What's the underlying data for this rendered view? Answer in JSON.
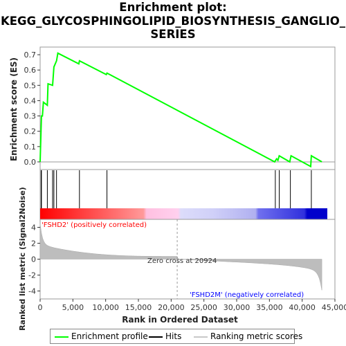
{
  "chart_data": {
    "type": "line",
    "title_lines": [
      "Enrichment plot:",
      "KEGG_GLYCOSPHINGOLIPID_BIOSYNTHESIS_GANGLIO_",
      "SERIES"
    ],
    "top_panel": {
      "ylabel": "Enrichment score (ES)",
      "ylim": [
        -0.05,
        0.75
      ],
      "yticks": [
        "0.0",
        "0.1",
        "0.2",
        "0.3",
        "0.4",
        "0.5",
        "0.6",
        "0.7"
      ],
      "series": {
        "name": "Enrichment profile",
        "color": "#00ff00",
        "x": [
          0,
          200,
          350,
          500,
          1100,
          1200,
          1900,
          2100,
          2500,
          2700,
          5900,
          6000,
          10100,
          10200,
          35800,
          36100,
          36300,
          36500,
          38100,
          38300,
          41300,
          41400,
          43000
        ],
        "y": [
          0.0,
          0.3,
          0.3,
          0.39,
          0.37,
          0.51,
          0.5,
          0.62,
          0.66,
          0.71,
          0.64,
          0.66,
          0.57,
          0.58,
          0.0,
          0.02,
          0.01,
          0.04,
          0.0,
          0.04,
          -0.03,
          0.04,
          0.0
        ]
      }
    },
    "hits": {
      "name": "Hits",
      "x": [
        150,
        200,
        1100,
        1900,
        2100,
        2500,
        6000,
        10200,
        35900,
        36500,
        38200,
        41400
      ]
    },
    "bottom_panel": {
      "ylabel": "Ranked list metric (Signal2Noise)",
      "xlabel": "Rank in Ordered Dataset",
      "ylim": [
        -5,
        5
      ],
      "yticks": [
        "-4",
        "-2",
        "0",
        "2",
        "4"
      ],
      "xlim": [
        0,
        45000
      ],
      "xticks": [
        "0",
        "5,000",
        "10,000",
        "15,000",
        "20,000",
        "25,000",
        "30,000",
        "35,000",
        "40,000",
        "45,000"
      ],
      "series_name": "Ranking metric scores",
      "zero_cross": 20924,
      "zero_cross_text": "Zero cross at 20924",
      "positive_label": "'FSHD2' (positively correlated)",
      "negative_label": "'FSHD2M' (negatively correlated)",
      "positive_color": "#ff0000",
      "negative_color": "#0000ff",
      "n_total": 43000
    },
    "legend": {
      "placement": "bottom",
      "items": [
        "Enrichment profile",
        "Hits",
        "Ranking metric scores"
      ]
    }
  }
}
